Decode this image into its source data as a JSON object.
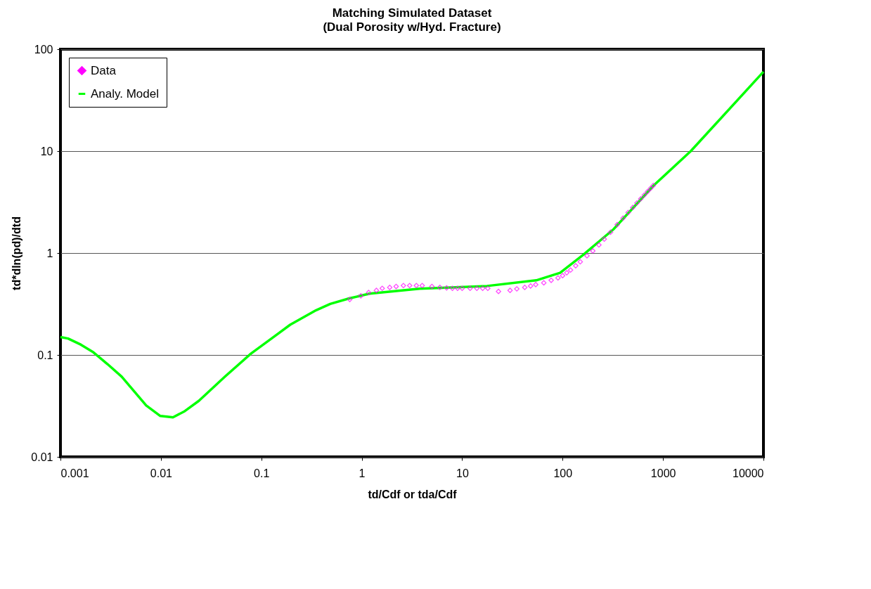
{
  "chart_data": {
    "type": "scatter",
    "title": "Matching Simulated Dataset",
    "subtitle": "(Dual Porosity w/Hyd. Fracture)",
    "xlabel": "td/Cdf or tda/Cdf",
    "ylabel": "td*dln(pd)/dtd",
    "log": "xy",
    "xlim": [
      0.001,
      10000
    ],
    "ylim": [
      0.01,
      100
    ],
    "xticks": [
      0.001,
      0.01,
      0.1,
      1,
      10,
      100,
      1000,
      10000
    ],
    "yticks": [
      0.01,
      0.1,
      1,
      10,
      100
    ],
    "grid": "y",
    "legend": "top left",
    "series": [
      {
        "name": "Data",
        "marker": "diamond",
        "color": "#ff00ff",
        "x": [
          0.76,
          0.98,
          1.17,
          1.4,
          1.6,
          1.9,
          2.2,
          2.6,
          3,
          3.5,
          4,
          5,
          6,
          7,
          8,
          9,
          10,
          12,
          14,
          16,
          18,
          23,
          30,
          35,
          42,
          48,
          54,
          65,
          77,
          90,
          100,
          110,
          120,
          135,
          150,
          175,
          200,
          230,
          260,
          300,
          350,
          400,
          450,
          500,
          550,
          600,
          650,
          700,
          750,
          800
        ],
        "values": [
          0.35,
          0.38,
          0.41,
          0.43,
          0.45,
          0.46,
          0.47,
          0.48,
          0.48,
          0.48,
          0.48,
          0.47,
          0.46,
          0.455,
          0.45,
          0.45,
          0.45,
          0.45,
          0.45,
          0.45,
          0.45,
          0.42,
          0.43,
          0.445,
          0.46,
          0.475,
          0.49,
          0.51,
          0.54,
          0.57,
          0.6,
          0.64,
          0.68,
          0.75,
          0.82,
          0.94,
          1.05,
          1.2,
          1.37,
          1.6,
          1.9,
          2.2,
          2.5,
          2.8,
          3.1,
          3.4,
          3.7,
          4.0,
          4.3,
          4.6
        ]
      },
      {
        "name": "Analy. Model",
        "type": "line",
        "marker": "none",
        "line_style": "solid",
        "color": "#00ff00",
        "x": [
          0.001,
          0.00119,
          0.0016,
          0.00213,
          0.00294,
          0.00407,
          0.00714,
          0.00987,
          0.0132,
          0.0173,
          0.0239,
          0.0435,
          0.0788,
          0.141,
          0.194,
          0.352,
          0.486,
          0.752,
          1.2,
          3.77,
          17.7,
          54.7,
          94.5,
          161,
          321,
          805,
          1890,
          10000
        ],
        "values": [
          0.15,
          0.145,
          0.126,
          0.106,
          0.0813,
          0.0613,
          0.0319,
          0.0252,
          0.0244,
          0.0281,
          0.0355,
          0.0613,
          0.103,
          0.157,
          0.198,
          0.275,
          0.317,
          0.359,
          0.4,
          0.447,
          0.475,
          0.54,
          0.64,
          0.962,
          1.71,
          4.59,
          10.0,
          60
        ]
      }
    ]
  }
}
